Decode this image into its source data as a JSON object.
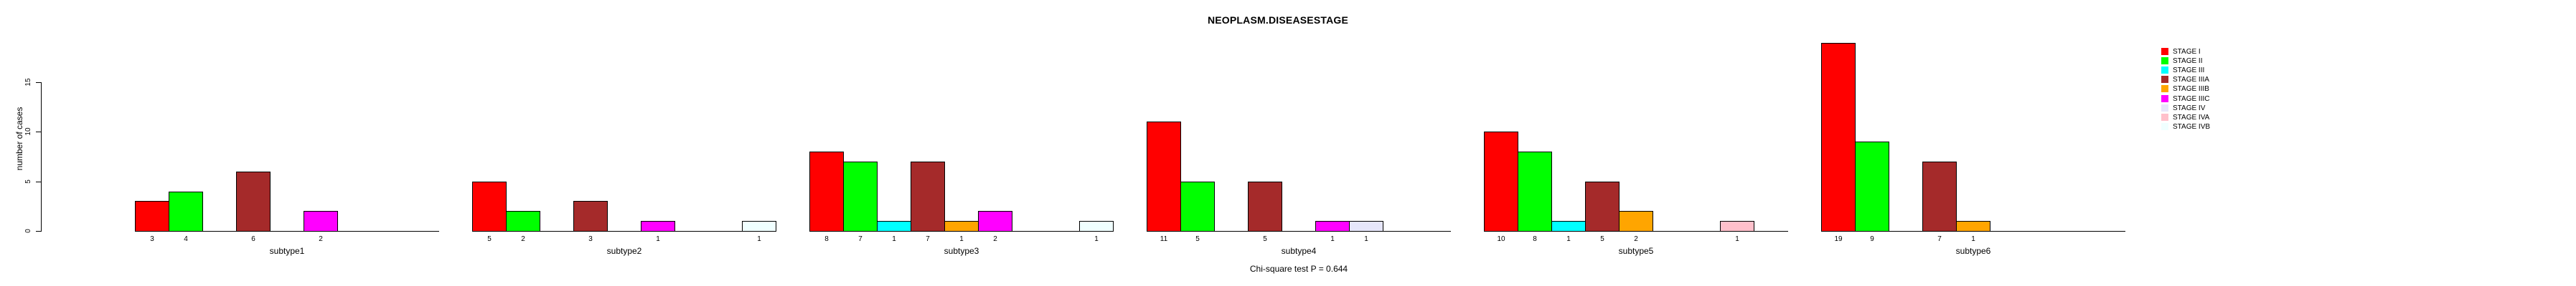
{
  "title": "NEOPLASM.DISEASESTAGE",
  "y_axis": {
    "label": "number of cases",
    "ticks": [
      0,
      5,
      10,
      15
    ],
    "max": 15
  },
  "footnote": "Chi-square test P = 0.644",
  "chart_data": {
    "type": "bar",
    "title": "NEOPLASM.DISEASESTAGE",
    "xlabel": "",
    "ylabel": "number of cases",
    "ylim": [
      0,
      15
    ],
    "yticks": [
      0,
      5,
      10,
      15
    ],
    "grid": false,
    "legend_position": "right",
    "annotation": "Chi-square test P = 0.644",
    "stages": [
      {
        "name": "STAGE I",
        "color": "#FF0000"
      },
      {
        "name": "STAGE II",
        "color": "#00FF00"
      },
      {
        "name": "STAGE III",
        "color": "#00FFFF"
      },
      {
        "name": "STAGE IIIA",
        "color": "#A52A2A"
      },
      {
        "name": "STAGE IIIB",
        "color": "#FFA500"
      },
      {
        "name": "STAGE IIIC",
        "color": "#FF00FF"
      },
      {
        "name": "STAGE IV",
        "color": "#E6E6FA"
      },
      {
        "name": "STAGE IVA",
        "color": "#FFC0CB"
      },
      {
        "name": "STAGE IVB",
        "color": "#F0FFFF"
      }
    ],
    "groups": [
      {
        "label": "subtype1",
        "values": [
          3,
          4,
          0,
          6,
          0,
          2,
          0,
          0,
          0
        ]
      },
      {
        "label": "subtype2",
        "values": [
          5,
          2,
          0,
          3,
          0,
          1,
          0,
          0,
          1
        ]
      },
      {
        "label": "subtype3",
        "values": [
          8,
          7,
          1,
          7,
          1,
          2,
          0,
          0,
          1
        ]
      },
      {
        "label": "subtype4",
        "values": [
          11,
          5,
          0,
          5,
          0,
          1,
          1,
          0,
          0
        ]
      },
      {
        "label": "subtype5",
        "values": [
          10,
          8,
          1,
          5,
          2,
          0,
          0,
          1,
          0
        ]
      },
      {
        "label": "subtype6",
        "values": [
          19,
          9,
          0,
          7,
          1,
          0,
          0,
          0,
          0
        ]
      }
    ]
  }
}
